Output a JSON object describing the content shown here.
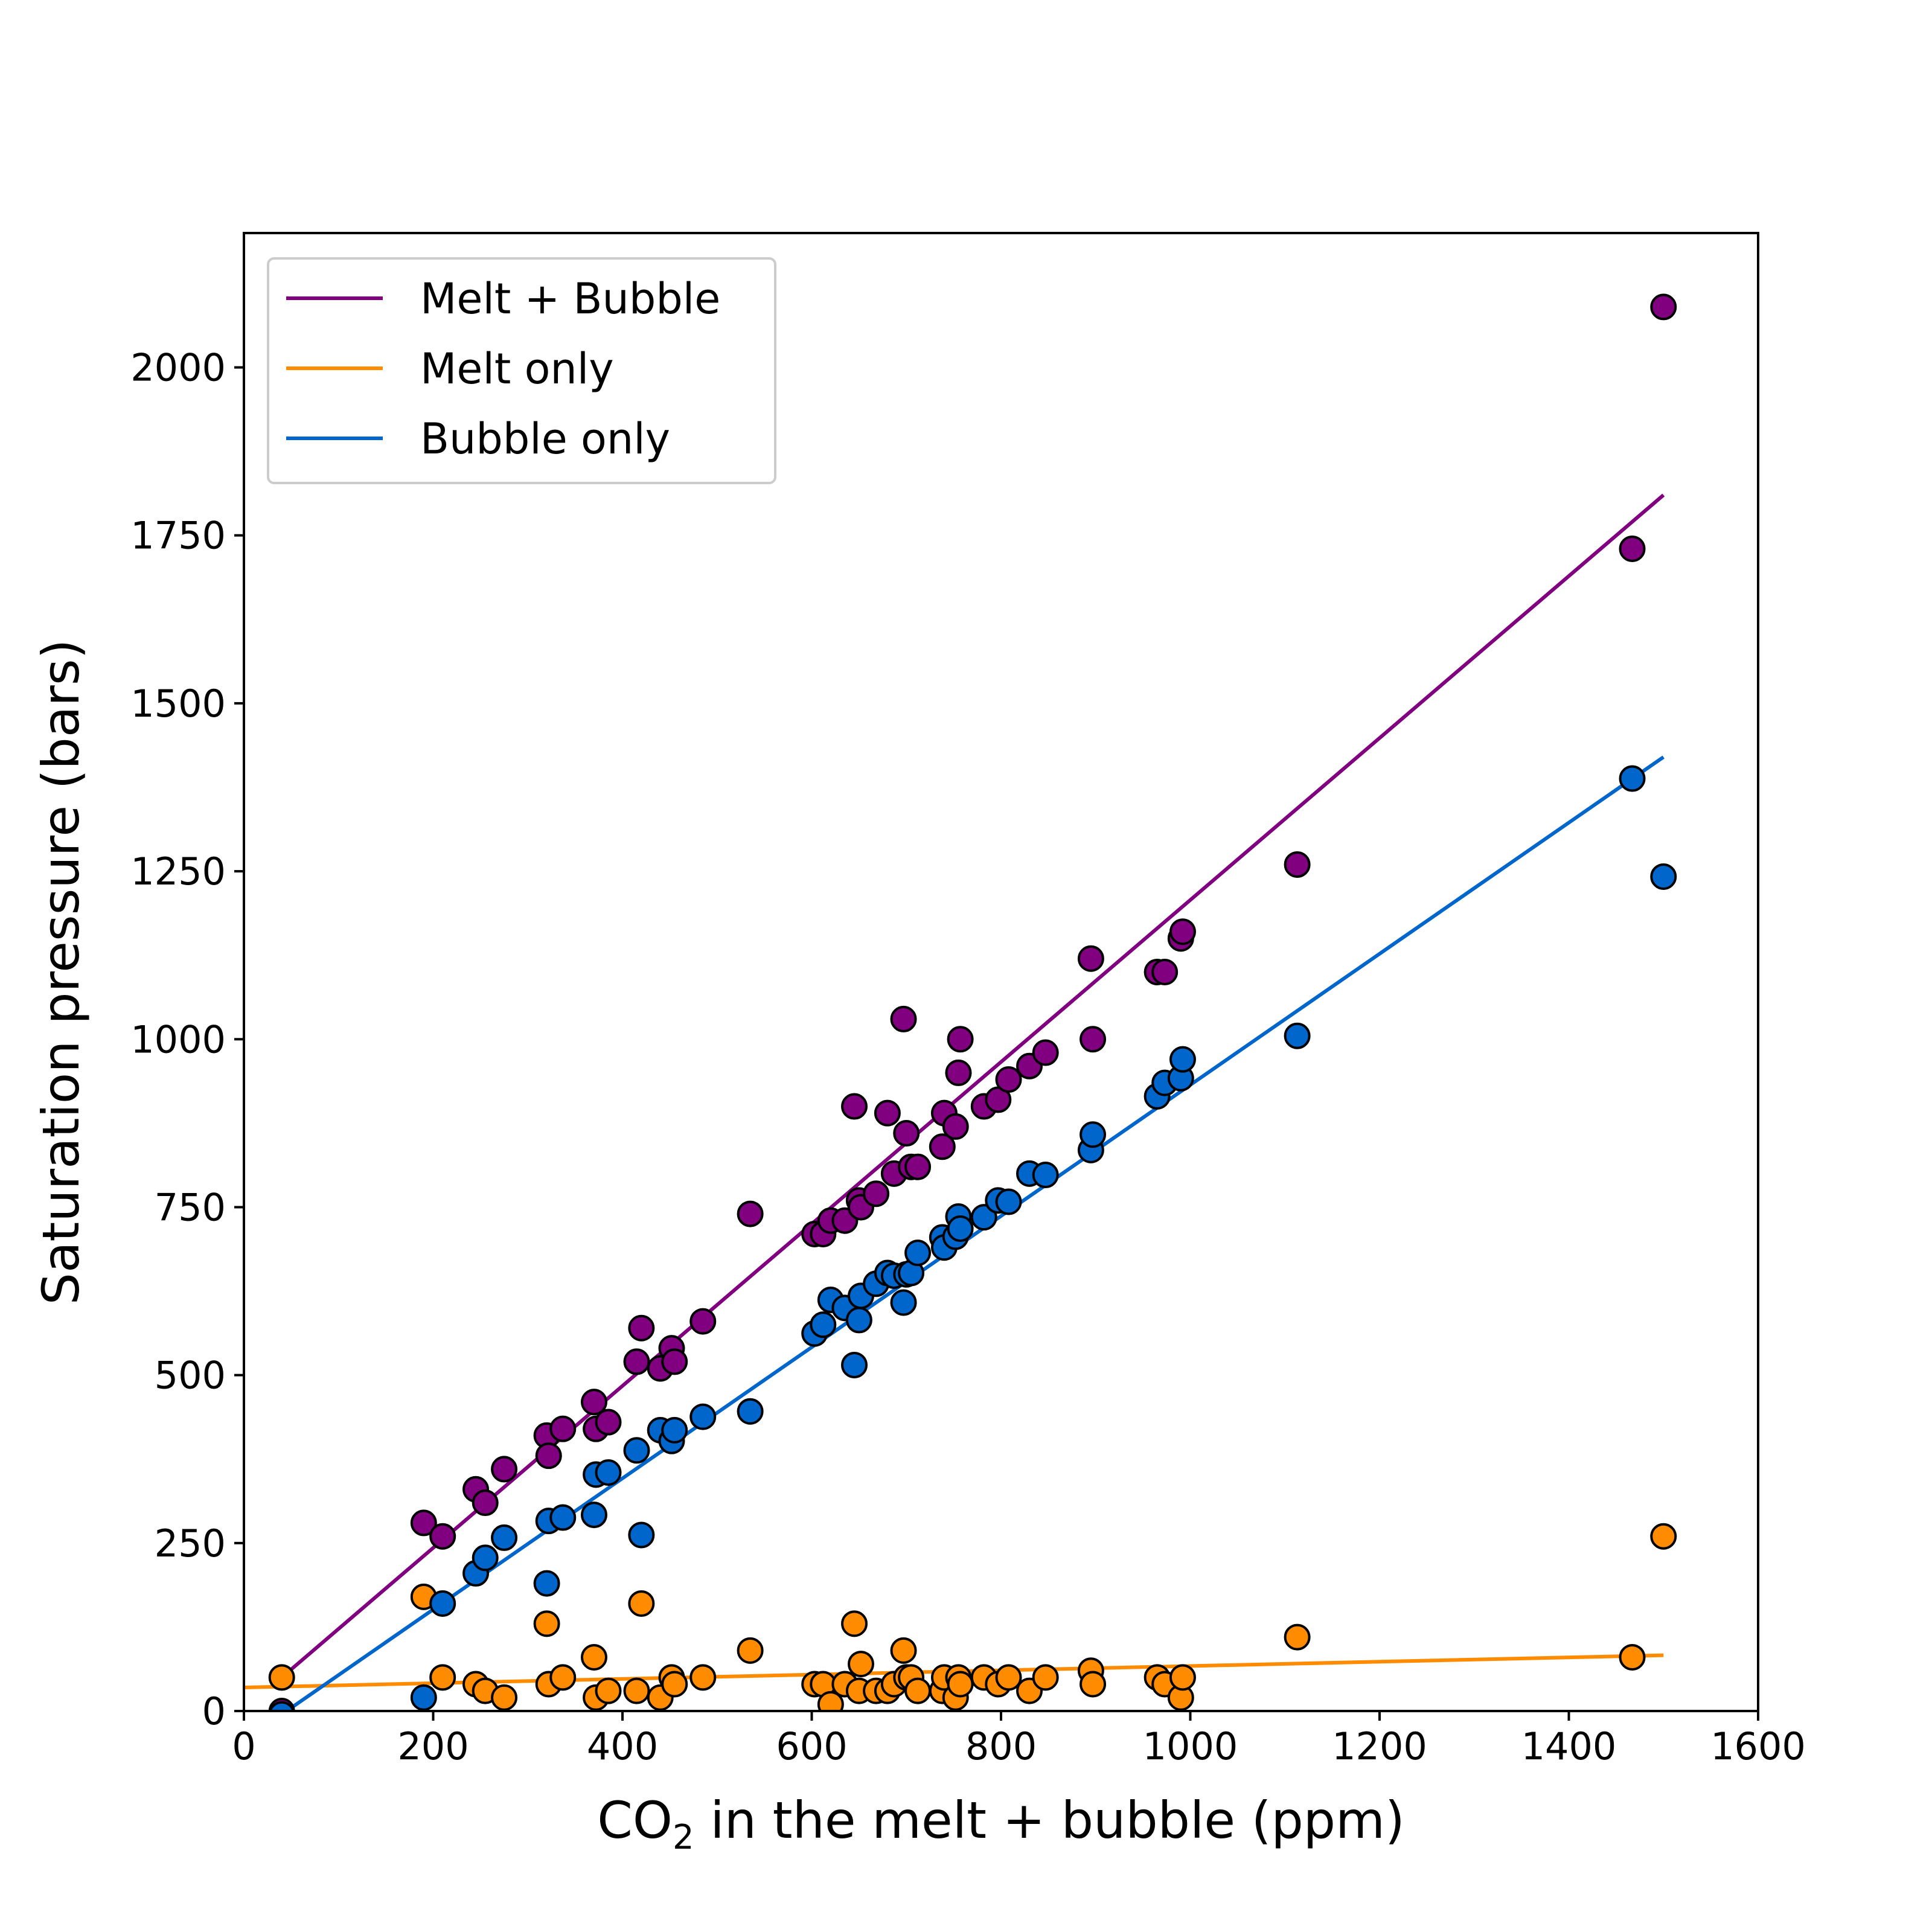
{
  "chart_data": {
    "type": "scatter",
    "xlabel_main": "CO",
    "xlabel_sub": "2",
    "xlabel_rest": " in the melt + bubble (ppm)",
    "ylabel": "Saturation pressure (bars)",
    "xlim": [
      0,
      1600
    ],
    "ylim": [
      0,
      2200
    ],
    "xticks": [
      "0",
      "200",
      "400",
      "600",
      "800",
      "1000",
      "1200",
      "1400",
      "1600"
    ],
    "yticks": [
      "0",
      "250",
      "500",
      "750",
      "1000",
      "1250",
      "1500",
      "1750",
      "2000"
    ],
    "grid": false,
    "legend_position": "top-left",
    "series": [
      {
        "name": "Melt + Bubble",
        "color": "#800080",
        "line": {
          "x": [
            40,
            1500
          ],
          "y": [
            50,
            1810
          ]
        },
        "points": [
          [
            40,
            0
          ],
          [
            190,
            280
          ],
          [
            210,
            260
          ],
          [
            245,
            330
          ],
          [
            255,
            310
          ],
          [
            275,
            360
          ],
          [
            320,
            410
          ],
          [
            322,
            380
          ],
          [
            337,
            420
          ],
          [
            370,
            460
          ],
          [
            372,
            420
          ],
          [
            385,
            430
          ],
          [
            415,
            520
          ],
          [
            420,
            570
          ],
          [
            440,
            510
          ],
          [
            452,
            540
          ],
          [
            455,
            520
          ],
          [
            485,
            580
          ],
          [
            535,
            740
          ],
          [
            603,
            710
          ],
          [
            612,
            710
          ],
          [
            620,
            730
          ],
          [
            635,
            730
          ],
          [
            645,
            900
          ],
          [
            650,
            760
          ],
          [
            652,
            750
          ],
          [
            668,
            770
          ],
          [
            680,
            890
          ],
          [
            687,
            800
          ],
          [
            697,
            1030
          ],
          [
            700,
            860
          ],
          [
            705,
            810
          ],
          [
            712,
            810
          ],
          [
            738,
            840
          ],
          [
            740,
            890
          ],
          [
            752,
            870
          ],
          [
            755,
            950
          ],
          [
            757,
            1000
          ],
          [
            782,
            900
          ],
          [
            797,
            910
          ],
          [
            808,
            940
          ],
          [
            830,
            960
          ],
          [
            847,
            980
          ],
          [
            895,
            1120
          ],
          [
            897,
            1000
          ],
          [
            965,
            1100
          ],
          [
            973,
            1100
          ],
          [
            990,
            1150
          ],
          [
            992,
            1160
          ],
          [
            1113,
            1260
          ],
          [
            1467,
            1730
          ],
          [
            1500,
            2090
          ]
        ]
      },
      {
        "name": "Melt only",
        "color": "#ff8c00",
        "line": {
          "x": [
            0,
            1500
          ],
          "y": [
            35,
            83
          ]
        },
        "points": [
          [
            40,
            50
          ],
          [
            190,
            170
          ],
          [
            210,
            50
          ],
          [
            245,
            40
          ],
          [
            255,
            30
          ],
          [
            275,
            20
          ],
          [
            320,
            130
          ],
          [
            322,
            40
          ],
          [
            337,
            50
          ],
          [
            370,
            80
          ],
          [
            372,
            20
          ],
          [
            385,
            30
          ],
          [
            415,
            30
          ],
          [
            420,
            160
          ],
          [
            440,
            20
          ],
          [
            452,
            50
          ],
          [
            455,
            40
          ],
          [
            485,
            50
          ],
          [
            535,
            90
          ],
          [
            603,
            40
          ],
          [
            612,
            40
          ],
          [
            620,
            10
          ],
          [
            635,
            40
          ],
          [
            645,
            130
          ],
          [
            650,
            30
          ],
          [
            652,
            70
          ],
          [
            668,
            30
          ],
          [
            680,
            30
          ],
          [
            687,
            40
          ],
          [
            697,
            90
          ],
          [
            700,
            50
          ],
          [
            705,
            50
          ],
          [
            712,
            30
          ],
          [
            738,
            30
          ],
          [
            740,
            50
          ],
          [
            752,
            20
          ],
          [
            755,
            50
          ],
          [
            757,
            40
          ],
          [
            782,
            50
          ],
          [
            797,
            40
          ],
          [
            808,
            50
          ],
          [
            830,
            30
          ],
          [
            847,
            50
          ],
          [
            895,
            60
          ],
          [
            897,
            40
          ],
          [
            965,
            50
          ],
          [
            973,
            40
          ],
          [
            990,
            20
          ],
          [
            992,
            50
          ],
          [
            1113,
            110
          ],
          [
            1467,
            80
          ],
          [
            1500,
            260
          ]
        ]
      },
      {
        "name": "Bubble only",
        "color": "#0066cc",
        "line": {
          "x": [
            40,
            1500
          ],
          "y": [
            -5,
            1420
          ]
        },
        "points": [
          [
            40,
            -5
          ],
          [
            190,
            20
          ],
          [
            210,
            160
          ],
          [
            245,
            205
          ],
          [
            255,
            228
          ],
          [
            275,
            258
          ],
          [
            320,
            190
          ],
          [
            322,
            283
          ],
          [
            337,
            288
          ],
          [
            370,
            292
          ],
          [
            372,
            352
          ],
          [
            385,
            355
          ],
          [
            415,
            388
          ],
          [
            420,
            262
          ],
          [
            440,
            418
          ],
          [
            452,
            402
          ],
          [
            455,
            418
          ],
          [
            485,
            438
          ],
          [
            535,
            446
          ],
          [
            603,
            562
          ],
          [
            612,
            575
          ],
          [
            620,
            612
          ],
          [
            635,
            600
          ],
          [
            645,
            515
          ],
          [
            650,
            582
          ],
          [
            652,
            618
          ],
          [
            668,
            636
          ],
          [
            680,
            652
          ],
          [
            687,
            648
          ],
          [
            697,
            608
          ],
          [
            700,
            650
          ],
          [
            705,
            652
          ],
          [
            712,
            682
          ],
          [
            738,
            705
          ],
          [
            740,
            690
          ],
          [
            752,
            706
          ],
          [
            755,
            736
          ],
          [
            757,
            718
          ],
          [
            782,
            735
          ],
          [
            797,
            760
          ],
          [
            808,
            758
          ],
          [
            830,
            800
          ],
          [
            847,
            798
          ],
          [
            895,
            835
          ],
          [
            897,
            858
          ],
          [
            965,
            915
          ],
          [
            973,
            935
          ],
          [
            990,
            942
          ],
          [
            992,
            970
          ],
          [
            1113,
            1005
          ],
          [
            1467,
            1388
          ],
          [
            1500,
            1242
          ]
        ]
      }
    ]
  }
}
